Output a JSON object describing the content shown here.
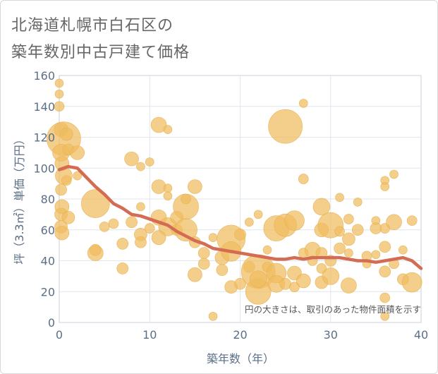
{
  "title_lines": [
    "北海道札幌市白石区の",
    "築年数別中古戸建て価格"
  ],
  "chart_data": {
    "type": "scatter",
    "xlabel": "築年数（年）",
    "ylabel": "坪（3.3㎡）単価（万円）",
    "xlim": [
      0,
      40
    ],
    "ylim": [
      0,
      160
    ],
    "x_ticks": [
      0,
      10,
      20,
      30,
      40
    ],
    "y_ticks": [
      0,
      20,
      40,
      60,
      80,
      100,
      120,
      140,
      160
    ],
    "annotation": "円の大きさは、取引のあった物件面積を示す",
    "grid": true,
    "colors": {
      "bubble": "#f0bd5e",
      "bubble_stroke": "#e8b255",
      "trend": "#d46b53",
      "grid": "#dfe6ee",
      "axis_text": "#5b6f86"
    },
    "bubbles": [
      {
        "x": 0.0,
        "y": 155,
        "s": 6
      },
      {
        "x": 0.0,
        "y": 148,
        "s": 6
      },
      {
        "x": 0.0,
        "y": 140,
        "s": 7
      },
      {
        "x": 0.2,
        "y": 125,
        "s": 10
      },
      {
        "x": 0.5,
        "y": 119,
        "s": 24
      },
      {
        "x": 0.2,
        "y": 110,
        "s": 12
      },
      {
        "x": 0.8,
        "y": 122,
        "s": 9
      },
      {
        "x": 1.0,
        "y": 112,
        "s": 8
      },
      {
        "x": 2.0,
        "y": 110,
        "s": 10
      },
      {
        "x": 0.3,
        "y": 103,
        "s": 10
      },
      {
        "x": 0.5,
        "y": 95,
        "s": 12
      },
      {
        "x": 0.2,
        "y": 86,
        "s": 8
      },
      {
        "x": 0.3,
        "y": 75,
        "s": 10
      },
      {
        "x": 0.2,
        "y": 70,
        "s": 9
      },
      {
        "x": 1.0,
        "y": 68,
        "s": 9
      },
      {
        "x": 0.2,
        "y": 62,
        "s": 9
      },
      {
        "x": 0.3,
        "y": 58,
        "s": 10
      },
      {
        "x": 0.8,
        "y": 92,
        "s": 7
      },
      {
        "x": 2.0,
        "y": 95,
        "s": 6
      },
      {
        "x": 4.0,
        "y": 77,
        "s": 20
      },
      {
        "x": 5.0,
        "y": 62,
        "s": 7
      },
      {
        "x": 6.0,
        "y": 64,
        "s": 7
      },
      {
        "x": 4.0,
        "y": 45,
        "s": 11
      },
      {
        "x": 4.0,
        "y": 47,
        "s": 8
      },
      {
        "x": 7.0,
        "y": 51,
        "s": 8
      },
      {
        "x": 7.0,
        "y": 35,
        "s": 8
      },
      {
        "x": 8.0,
        "y": 106,
        "s": 10
      },
      {
        "x": 9.0,
        "y": 101,
        "s": 6
      },
      {
        "x": 10.0,
        "y": 104,
        "s": 6
      },
      {
        "x": 9.0,
        "y": 75,
        "s": 6
      },
      {
        "x": 8.0,
        "y": 65,
        "s": 8
      },
      {
        "x": 9.0,
        "y": 57,
        "s": 9
      },
      {
        "x": 9.0,
        "y": 52,
        "s": 8
      },
      {
        "x": 10.0,
        "y": 61,
        "s": 7
      },
      {
        "x": 11.0,
        "y": 128,
        "s": 11
      },
      {
        "x": 12.0,
        "y": 125,
        "s": 6
      },
      {
        "x": 11.0,
        "y": 88,
        "s": 10
      },
      {
        "x": 12.0,
        "y": 87,
        "s": 6
      },
      {
        "x": 12.0,
        "y": 82,
        "s": 6
      },
      {
        "x": 11.0,
        "y": 68,
        "s": 11
      },
      {
        "x": 12.0,
        "y": 62,
        "s": 13
      },
      {
        "x": 11.0,
        "y": 55,
        "s": 10
      },
      {
        "x": 13.0,
        "y": 68,
        "s": 9
      },
      {
        "x": 13.0,
        "y": 60,
        "s": 8
      },
      {
        "x": 14.0,
        "y": 75,
        "s": 18
      },
      {
        "x": 14.0,
        "y": 60,
        "s": 16
      },
      {
        "x": 14.0,
        "y": 80,
        "s": 7
      },
      {
        "x": 15.0,
        "y": 88,
        "s": 10
      },
      {
        "x": 15.0,
        "y": 52,
        "s": 8
      },
      {
        "x": 15.0,
        "y": 31,
        "s": 10
      },
      {
        "x": 16.0,
        "y": 45,
        "s": 8
      },
      {
        "x": 16.0,
        "y": 38,
        "s": 8
      },
      {
        "x": 17.0,
        "y": 55,
        "s": 6
      },
      {
        "x": 17.0,
        "y": 4,
        "s": 6
      },
      {
        "x": 18.0,
        "y": 42,
        "s": 10
      },
      {
        "x": 18.0,
        "y": 34,
        "s": 8
      },
      {
        "x": 19.0,
        "y": 54,
        "s": 20
      },
      {
        "x": 19.0,
        "y": 46,
        "s": 14
      },
      {
        "x": 19.0,
        "y": 23,
        "s": 9
      },
      {
        "x": 20.0,
        "y": 57,
        "s": 8
      },
      {
        "x": 20.0,
        "y": 25,
        "s": 8
      },
      {
        "x": 21.0,
        "y": 65,
        "s": 6
      },
      {
        "x": 21.0,
        "y": 36,
        "s": 8
      },
      {
        "x": 22.0,
        "y": 33,
        "s": 24
      },
      {
        "x": 22.0,
        "y": 20,
        "s": 18
      },
      {
        "x": 22.0,
        "y": 28,
        "s": 12
      },
      {
        "x": 22.0,
        "y": 70,
        "s": 6
      },
      {
        "x": 23.0,
        "y": 47,
        "s": 6
      },
      {
        "x": 23.0,
        "y": 36,
        "s": 7
      },
      {
        "x": 24.0,
        "y": 61,
        "s": 18
      },
      {
        "x": 24.0,
        "y": 32,
        "s": 14
      },
      {
        "x": 24.0,
        "y": 25,
        "s": 12
      },
      {
        "x": 25.0,
        "y": 127,
        "s": 24
      },
      {
        "x": 25.0,
        "y": 63,
        "s": 16
      },
      {
        "x": 25.0,
        "y": 25,
        "s": 8
      },
      {
        "x": 26.0,
        "y": 66,
        "s": 14
      },
      {
        "x": 26.0,
        "y": 32,
        "s": 10
      },
      {
        "x": 26.0,
        "y": 23,
        "s": 7
      },
      {
        "x": 27.0,
        "y": 142,
        "s": 6
      },
      {
        "x": 27.0,
        "y": 93,
        "s": 7
      },
      {
        "x": 27.0,
        "y": 45,
        "s": 7
      },
      {
        "x": 27.0,
        "y": 27,
        "s": 10
      },
      {
        "x": 28.0,
        "y": 47,
        "s": 11
      },
      {
        "x": 28.0,
        "y": 40,
        "s": 7
      },
      {
        "x": 29.0,
        "y": 75,
        "s": 12
      },
      {
        "x": 29.0,
        "y": 60,
        "s": 10
      },
      {
        "x": 29.0,
        "y": 45,
        "s": 8
      },
      {
        "x": 29.0,
        "y": 35,
        "s": 7
      },
      {
        "x": 29.0,
        "y": 26,
        "s": 9
      },
      {
        "x": 30.0,
        "y": 63,
        "s": 18
      },
      {
        "x": 30.0,
        "y": 30,
        "s": 12
      },
      {
        "x": 30.0,
        "y": 40,
        "s": 8
      },
      {
        "x": 31.0,
        "y": 81,
        "s": 6
      },
      {
        "x": 31.0,
        "y": 59,
        "s": 7
      },
      {
        "x": 31.0,
        "y": 48,
        "s": 8
      },
      {
        "x": 32.0,
        "y": 67,
        "s": 7
      },
      {
        "x": 32.0,
        "y": 54,
        "s": 9
      },
      {
        "x": 32.0,
        "y": 24,
        "s": 11
      },
      {
        "x": 32.0,
        "y": 45,
        "s": 6
      },
      {
        "x": 33.0,
        "y": 78,
        "s": 6
      },
      {
        "x": 33.0,
        "y": 60,
        "s": 8
      },
      {
        "x": 34.0,
        "y": 43,
        "s": 7
      },
      {
        "x": 34.0,
        "y": 38,
        "s": 6
      },
      {
        "x": 35.0,
        "y": 66,
        "s": 6
      },
      {
        "x": 35.0,
        "y": 61,
        "s": 8
      },
      {
        "x": 35.0,
        "y": 44,
        "s": 6
      },
      {
        "x": 36.0,
        "y": 92,
        "s": 6
      },
      {
        "x": 36.0,
        "y": 88,
        "s": 6
      },
      {
        "x": 36.0,
        "y": 61,
        "s": 7
      },
      {
        "x": 36.0,
        "y": 49,
        "s": 8
      },
      {
        "x": 36.0,
        "y": 33,
        "s": 8
      },
      {
        "x": 36.0,
        "y": 16,
        "s": 7
      },
      {
        "x": 36.0,
        "y": 4,
        "s": 6
      },
      {
        "x": 37.0,
        "y": 96,
        "s": 6
      },
      {
        "x": 37.0,
        "y": 65,
        "s": 11
      },
      {
        "x": 37.0,
        "y": 38,
        "s": 7
      },
      {
        "x": 38.0,
        "y": 47,
        "s": 6
      },
      {
        "x": 38.0,
        "y": 28,
        "s": 8
      },
      {
        "x": 39.0,
        "y": 66,
        "s": 7
      },
      {
        "x": 39.0,
        "y": 26,
        "s": 14
      }
    ],
    "trend": {
      "x": [
        0,
        1,
        2,
        3,
        4,
        5,
        6,
        7,
        8,
        9,
        10,
        11,
        12,
        13,
        14,
        15,
        16,
        17,
        18,
        19,
        20,
        21,
        22,
        23,
        24,
        25,
        26,
        27,
        28,
        29,
        30,
        31,
        32,
        33,
        34,
        35,
        36,
        37,
        38,
        39,
        40
      ],
      "y": [
        99,
        101,
        100,
        94,
        88,
        83,
        77,
        74,
        70,
        69,
        67,
        65,
        63,
        59,
        56,
        53,
        51,
        48,
        47,
        46,
        45,
        44,
        43,
        42,
        41,
        41,
        42,
        41,
        42,
        42,
        42,
        42,
        41,
        40,
        40,
        39,
        40,
        41,
        42,
        40,
        35
      ]
    }
  }
}
